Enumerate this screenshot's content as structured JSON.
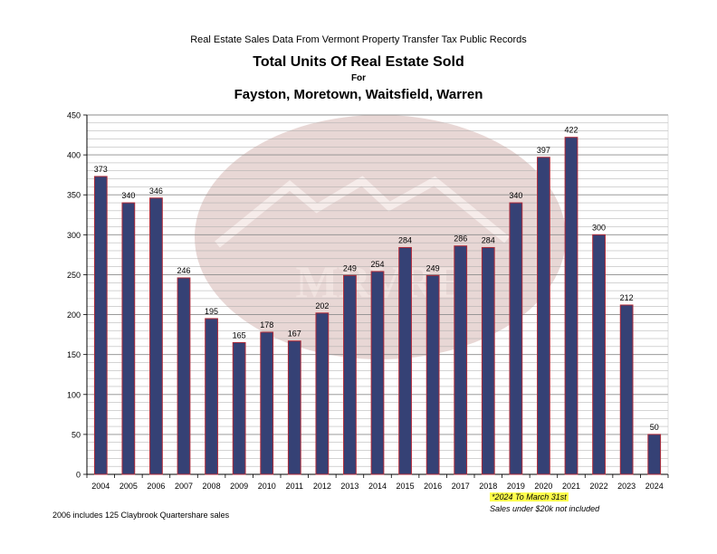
{
  "header": {
    "supertitle": "Real Estate Sales Data From Vermont Property Transfer Tax Public Records",
    "title": "Total Units Of Real Estate Sold",
    "title_for": "For",
    "title_towns": "Fayston, Moretown, Waitsfield, Warren"
  },
  "watermark": {
    "text": "MRVRE",
    "color": "#e6d3d0"
  },
  "footnotes": {
    "left": "2006 includes 125 Claybrook Quartershare sales",
    "highlight": "*2024 To March 31st",
    "second": "Sales under $20k not included"
  },
  "colors": {
    "bar_fill": "#354175",
    "bar_outline": "#b02a38",
    "grid": "#a8a8a8",
    "highlight": "#ffff4d"
  },
  "chart_data": {
    "type": "bar",
    "categories": [
      "2004",
      "2005",
      "2006",
      "2007",
      "2008",
      "2009",
      "2010",
      "2011",
      "2012",
      "2013",
      "2014",
      "2015",
      "2016",
      "2017",
      "2018",
      "2019",
      "2020",
      "2021",
      "2022",
      "2023",
      "2024"
    ],
    "values": [
      373,
      340,
      346,
      246,
      195,
      165,
      178,
      167,
      202,
      249,
      254,
      284,
      249,
      286,
      284,
      340,
      397,
      422,
      300,
      212,
      50
    ],
    "title": "Total Units Of Real Estate Sold",
    "xlabel": "",
    "ylabel": "",
    "ylim": [
      0,
      450
    ],
    "yticks": [
      0,
      50,
      100,
      150,
      200,
      250,
      300,
      350,
      400,
      450
    ],
    "grid": true,
    "data_labels": true
  }
}
